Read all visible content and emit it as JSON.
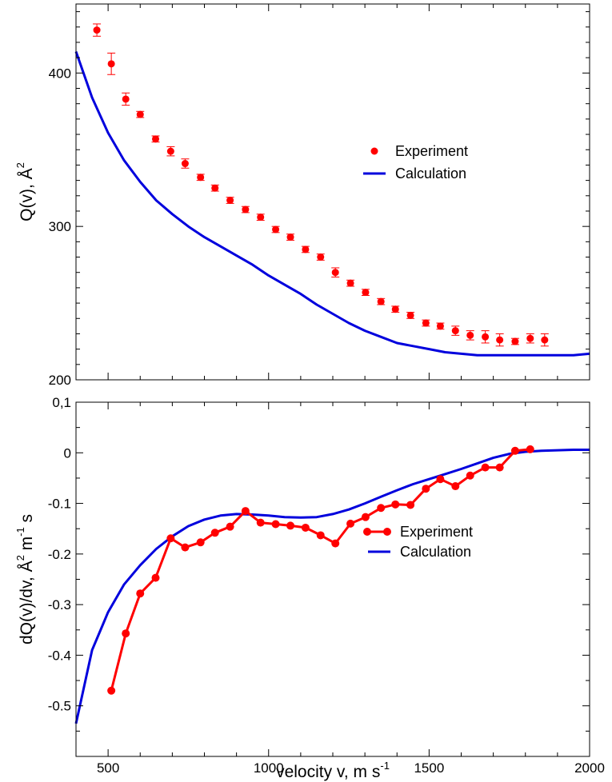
{
  "chart_data": [
    {
      "type": "scatter",
      "ylabel": "Q(v), Å",
      "ylabel_superscript": "2",
      "xlim": [
        400,
        2000
      ],
      "ylim": [
        200,
        445
      ],
      "x_ticks": [
        500,
        1000,
        1500,
        2000
      ],
      "y_ticks": [
        200,
        300,
        400
      ],
      "y_tick_labels": [
        "200",
        "300",
        "400"
      ],
      "legend_position": "center-right",
      "colors": {
        "experiment": "#ff0000",
        "calculation": "#0000dd"
      },
      "series": [
        {
          "name": "Experiment",
          "style": "markers-with-error-bars",
          "x": [
            465,
            510,
            555,
            600,
            648,
            695,
            740,
            788,
            833,
            880,
            928,
            975,
            1022,
            1068,
            1115,
            1162,
            1208,
            1255,
            1302,
            1350,
            1395,
            1442,
            1490,
            1535,
            1582,
            1628,
            1675,
            1720,
            1768,
            1815,
            1860
          ],
          "y": [
            428,
            406,
            383,
            373,
            357,
            349,
            341,
            332,
            325,
            317,
            311,
            306,
            298,
            293,
            285,
            280,
            270,
            263,
            257,
            251,
            246,
            242,
            237,
            235,
            232,
            229,
            228,
            226,
            225,
            227,
            226
          ],
          "err": [
            4,
            7,
            4,
            2,
            2,
            3,
            3,
            2,
            2,
            2,
            2,
            2,
            2,
            2,
            2,
            2,
            3,
            2,
            2,
            2,
            2,
            2,
            2,
            2,
            3,
            3,
            4,
            4,
            2,
            3,
            4
          ]
        },
        {
          "name": "Calculation",
          "style": "line",
          "x": [
            400,
            450,
            500,
            550,
            600,
            650,
            700,
            750,
            800,
            850,
            900,
            950,
            1000,
            1050,
            1100,
            1150,
            1200,
            1250,
            1300,
            1350,
            1400,
            1450,
            1500,
            1550,
            1600,
            1650,
            1700,
            1750,
            1800,
            1850,
            1900,
            1950,
            2000
          ],
          "y": [
            414,
            384,
            361,
            343,
            329,
            317,
            308,
            300,
            293,
            287,
            281,
            275,
            268,
            262,
            256,
            249,
            243,
            237,
            232,
            228,
            224,
            222,
            220,
            218,
            217,
            216,
            216,
            216,
            216,
            216,
            216,
            216,
            217
          ]
        }
      ]
    },
    {
      "type": "line",
      "xlabel": "velocity v, m s",
      "xlabel_superscript": "-1",
      "ylabel": "dQ(v)/dv, Å m s",
      "ylabel_superscripts": [
        "2",
        "-1"
      ],
      "xlim": [
        400,
        2000
      ],
      "ylim": [
        -0.6,
        0.1
      ],
      "x_ticks": [
        500,
        1000,
        1500,
        2000
      ],
      "x_tick_labels": [
        "500",
        "1000",
        "1500",
        "2000"
      ],
      "y_ticks": [
        -0.5,
        -0.4,
        -0.3,
        -0.2,
        -0.1,
        0,
        0.1
      ],
      "y_tick_labels": [
        "-0.5",
        "-0.4",
        "-0.3",
        "-0.2",
        "-0.1",
        "0",
        "0,1"
      ],
      "legend_position": "center-right",
      "colors": {
        "experiment": "#ff0000",
        "calculation": "#0000dd"
      },
      "series": [
        {
          "name": "Experiment",
          "style": "line-with-markers",
          "x": [
            510,
            555,
            600,
            648,
            695,
            740,
            788,
            833,
            880,
            928,
            975,
            1022,
            1068,
            1115,
            1162,
            1208,
            1255,
            1302,
            1350,
            1395,
            1442,
            1490,
            1535,
            1582,
            1628,
            1675,
            1720,
            1768,
            1815
          ],
          "y": [
            -0.47,
            -0.357,
            -0.278,
            -0.247,
            -0.169,
            -0.187,
            -0.177,
            -0.158,
            -0.146,
            -0.115,
            -0.138,
            -0.141,
            -0.144,
            -0.148,
            -0.163,
            -0.179,
            -0.14,
            -0.127,
            -0.109,
            -0.102,
            -0.103,
            -0.071,
            -0.052,
            -0.066,
            -0.045,
            -0.029,
            -0.029,
            0.004,
            0.007
          ]
        },
        {
          "name": "Calculation",
          "style": "line",
          "x": [
            400,
            450,
            500,
            550,
            600,
            650,
            700,
            750,
            800,
            850,
            900,
            950,
            1000,
            1050,
            1100,
            1150,
            1200,
            1250,
            1300,
            1350,
            1400,
            1450,
            1500,
            1550,
            1600,
            1650,
            1700,
            1750,
            1800,
            1850,
            1900,
            1950,
            2000
          ],
          "y": [
            -0.535,
            -0.39,
            -0.315,
            -0.26,
            -0.222,
            -0.19,
            -0.165,
            -0.145,
            -0.132,
            -0.124,
            -0.121,
            -0.122,
            -0.124,
            -0.127,
            -0.128,
            -0.127,
            -0.121,
            -0.112,
            -0.1,
            -0.087,
            -0.074,
            -0.062,
            -0.052,
            -0.042,
            -0.032,
            -0.021,
            -0.01,
            -0.002,
            0.002,
            0.004,
            0.005,
            0.006,
            0.006
          ]
        }
      ]
    }
  ]
}
